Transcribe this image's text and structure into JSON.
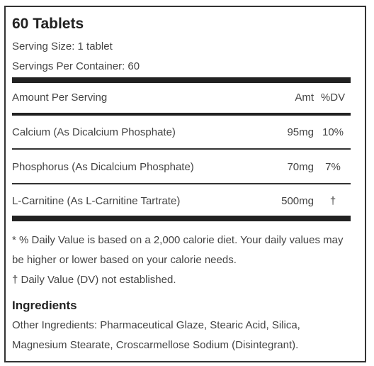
{
  "label": {
    "title": "60 Tablets",
    "serving_size": "Serving Size: 1 tablet",
    "servings_per_container": "Servings Per Container: 60",
    "header": {
      "amount_per_serving": "Amount Per Serving",
      "amt": "Amt",
      "dv": "%DV"
    },
    "rows": [
      {
        "name": "Calcium (As Dicalcium Phosphate)",
        "amt": "95mg",
        "dv": "10%"
      },
      {
        "name": "Phosphorus (As Dicalcium Phosphate)",
        "amt": "70mg",
        "dv": "7%"
      },
      {
        "name": "L-Carnitine (As L-Carnitine Tartrate)",
        "amt": "500mg",
        "dv": "†"
      }
    ],
    "footnote_line1": "* % Daily Value is based on a 2,000 calorie diet. Your daily values may",
    "footnote_line2": "be higher or lower based on your calorie needs.",
    "footnote_dagger": "† Daily Value (DV) not established.",
    "ingredients_heading": "Ingredients",
    "ingredients_line1": "Other Ingredients: Pharmaceutical Glaze, Stearic Acid, Silica,",
    "ingredients_line2": "Magnesium Stearate, Croscarmellose Sodium (Disintegrant)."
  }
}
